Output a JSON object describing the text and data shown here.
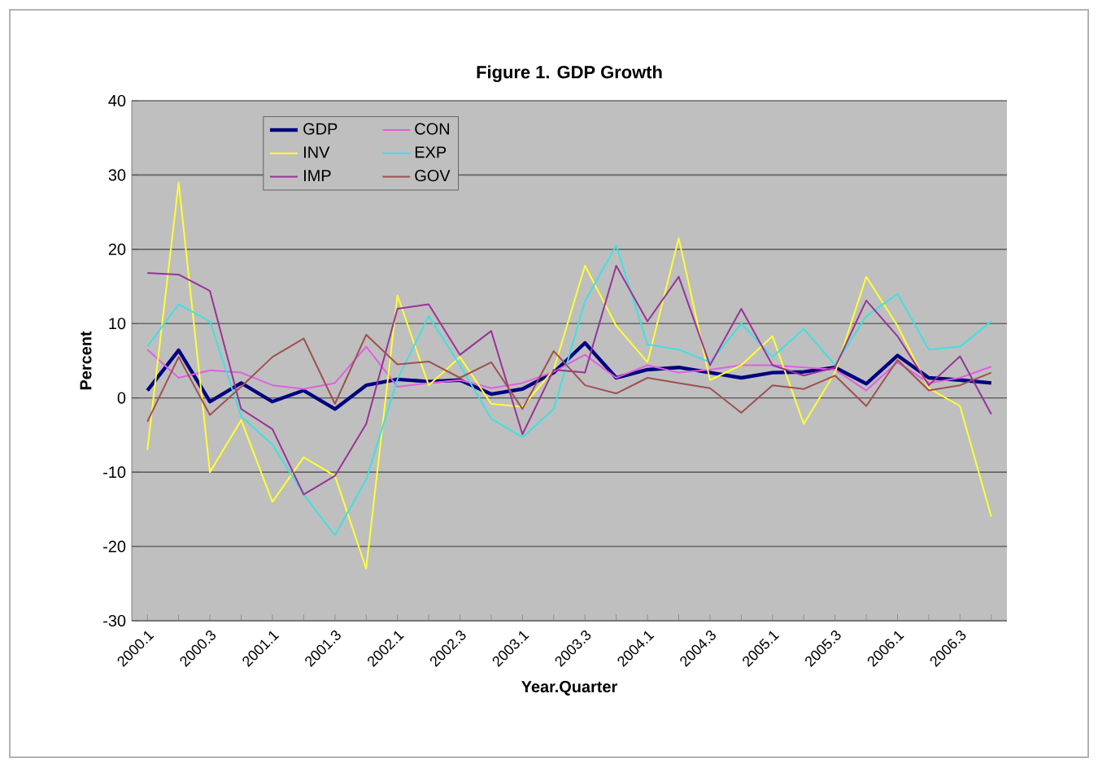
{
  "chart_data": {
    "type": "line",
    "title": "Figure 1. GDP Growth",
    "xlabel": "Year.Quarter",
    "ylabel": "Percent",
    "categories": [
      "2000.1",
      null,
      "2000.3",
      null,
      "2001.1",
      null,
      "2001.3",
      null,
      "2002.1",
      null,
      "2002.3",
      null,
      "2003.1",
      null,
      "2003.3",
      null,
      "2004.1",
      null,
      "2004.3",
      null,
      "2005.1",
      null,
      "2005.3",
      null,
      "2006.1",
      null,
      "2006.3",
      null
    ],
    "series": [
      {
        "name": "GDP",
        "color": "#000080",
        "values": [
          1,
          6.4,
          -0.5,
          2,
          -0.5,
          1,
          -1.5,
          1.7,
          2.5,
          2.2,
          2.4,
          0.5,
          1.2,
          3.4,
          7.4,
          2.7,
          3.8,
          4.1,
          3.4,
          2.7,
          3.4,
          3.5,
          4.1,
          1.9,
          5.7,
          2.7,
          2.4,
          2
        ]
      },
      {
        "name": "CON",
        "color": "#e060e0",
        "values": [
          6.5,
          2.7,
          3.7,
          3.4,
          1.7,
          1.2,
          2,
          6.9,
          1.5,
          2,
          2.4,
          1.3,
          2,
          3.5,
          5.8,
          2.7,
          4.4,
          3.4,
          3.8,
          4.4,
          4.4,
          4.1,
          3.8,
          1,
          4.8,
          2,
          2.7,
          4.2
        ]
      },
      {
        "name": "INV",
        "color": "#ffff33",
        "values": [
          -7,
          29,
          -10,
          -3,
          -14,
          -8,
          -10.5,
          -23,
          13.8,
          1.7,
          5.5,
          -0.8,
          -1.2,
          3.8,
          17.8,
          9.7,
          4.8,
          21.5,
          2.4,
          4.4,
          8.3,
          -3.5,
          3.4,
          16.3,
          9.7,
          1.3,
          -1.1,
          -16
        ]
      },
      {
        "name": "EXP",
        "color": "#40e0e0",
        "values": [
          6.9,
          12.6,
          10.3,
          -2.5,
          -6.3,
          -13,
          -18.5,
          -11,
          2.5,
          11,
          4.4,
          -2.8,
          -5.3,
          -1.5,
          13,
          20.5,
          7.2,
          6.5,
          4.8,
          10,
          5.5,
          9.3,
          4.4,
          11,
          14,
          6.5,
          6.9,
          10.3
        ]
      },
      {
        "name": "IMP",
        "color": "#993399",
        "values": [
          16.8,
          16.6,
          14.4,
          -1.5,
          -4.2,
          -13,
          -10.5,
          -3.5,
          12,
          12.6,
          5.8,
          9,
          -4.9,
          3.8,
          3.4,
          17.8,
          10.3,
          16.3,
          4.4,
          12,
          4.4,
          3,
          4.1,
          13.1,
          8.3,
          1.7,
          5.6,
          -2.2
        ]
      },
      {
        "name": "GOV",
        "color": "#a05050",
        "values": [
          -3.2,
          5.5,
          -2.3,
          1.5,
          5.5,
          8,
          -0.8,
          8.5,
          4.5,
          4.9,
          2.7,
          4.8,
          -1.5,
          6.3,
          1.7,
          0.6,
          2.7,
          2,
          1.3,
          -2,
          1.7,
          1.2,
          3,
          -1.1,
          5.1,
          1,
          1.7,
          3.4
        ]
      }
    ],
    "ylim": [
      -30,
      40
    ],
    "yticks": [
      -30,
      -20,
      -10,
      0,
      10,
      20,
      30,
      40
    ],
    "grid": "y",
    "legend": "top left",
    "line_style": "solid",
    "marker": "none"
  }
}
